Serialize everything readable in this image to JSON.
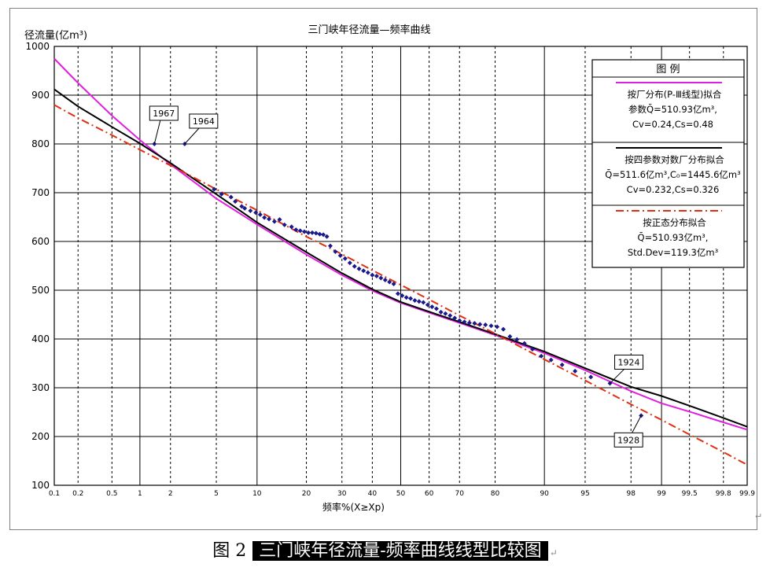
{
  "chart_data": {
    "type": "scatter",
    "title": "三门峡年径流量—频率曲线",
    "ylabel": "径流量(亿m³)",
    "xlabel": "频率%(X≥Xp)",
    "x_scale": "normal-probability",
    "xlim": [
      0.1,
      99.9
    ],
    "ylim": [
      100,
      1000
    ],
    "grid": true,
    "x_ticks": [
      0.1,
      0.2,
      0.5,
      1,
      2,
      5,
      10,
      20,
      30,
      40,
      50,
      60,
      70,
      80,
      90,
      95,
      98,
      99,
      99.5,
      99.8,
      99.9
    ],
    "x_tick_labels": [
      "0.1",
      "0.2",
      "0.5",
      "1",
      "2",
      "5",
      "10",
      "20",
      "30",
      "40",
      "50",
      "60",
      "70",
      "80",
      "90",
      "95",
      "98",
      "99",
      "99.5",
      "99.8",
      "99.9"
    ],
    "y_ticks": [
      100,
      200,
      300,
      400,
      500,
      600,
      700,
      800,
      900,
      1000
    ],
    "y_tick_labels": [
      "100",
      "200",
      "300",
      "400",
      "500",
      "600",
      "700",
      "800",
      "900",
      "1000"
    ],
    "legend_placement": "top-right",
    "legend": {
      "header": "图    例",
      "entries": [
        {
          "lines": [
            "按厂分布(P-Ⅲ线型)拟合",
            "参数Q̄=510.93亿m³,",
            "Cv=0.24,Cs=0.48"
          ],
          "color": "#e020e0",
          "dash": "solid"
        },
        {
          "lines": [
            "按四参数对数厂分布拟合",
            "Q̄=511.6亿m³,C₀=1445.6亿m³",
            "Cv=0.232,Cs=0.326"
          ],
          "color": "#000000",
          "dash": "solid"
        },
        {
          "lines": [
            "按正态分布拟合",
            "Q̄=510.93亿m³,",
            "Std.Dev=119.3亿m³"
          ],
          "color": "#e03010",
          "dash": "dashdot"
        }
      ]
    },
    "series": [
      {
        "name": "按厂分布(P-Ⅲ线型)拟合",
        "kind": "line",
        "color": "#e020e0",
        "dash": "solid",
        "x": [
          0.1,
          0.2,
          0.5,
          1,
          2,
          5,
          10,
          20,
          30,
          40,
          50,
          60,
          70,
          80,
          90,
          95,
          98,
          99,
          99.5,
          99.8,
          99.9
        ],
        "y": [
          975,
          925,
          858,
          808,
          758,
          688,
          635,
          573,
          531,
          499,
          474,
          454,
          433,
          408,
          371,
          336,
          293,
          268,
          251,
          229,
          214
        ]
      },
      {
        "name": "按四参数对数厂分布拟合",
        "kind": "line",
        "color": "#000000",
        "dash": "solid",
        "x": [
          0.1,
          0.2,
          0.5,
          1,
          2,
          5,
          10,
          20,
          30,
          40,
          50,
          60,
          70,
          80,
          90,
          95,
          98,
          99,
          99.5,
          99.8,
          99.9
        ],
        "y": [
          912,
          877,
          835,
          801,
          761,
          697,
          639,
          578,
          535,
          502,
          476,
          456,
          435,
          410,
          374,
          340,
          302,
          283,
          263,
          238,
          220
        ]
      },
      {
        "name": "按正态分布拟合",
        "kind": "line",
        "color": "#e03010",
        "dash": "dashdot",
        "x": [
          0.1,
          0.2,
          0.5,
          1,
          2,
          5,
          10,
          20,
          30,
          40,
          50,
          60,
          70,
          80,
          90,
          95,
          98,
          99,
          99.5,
          99.8,
          99.9
        ],
        "y": [
          880,
          853,
          818,
          788,
          756,
          707,
          664,
          610,
          574,
          541,
          511,
          481,
          448,
          411,
          358,
          315,
          266,
          234,
          204,
          168,
          142
        ]
      },
      {
        "name": "",
        "kind": "points",
        "color": "#1a1a8c",
        "x": [
          1.4,
          2.7,
          4.8,
          5.5,
          6.5,
          7.0,
          7.8,
          8.2,
          9.0,
          9.8,
          10.5,
          11.2,
          12.0,
          13.0,
          14.0,
          15.0,
          16.5,
          17.5,
          18.5,
          19.5,
          20.5,
          21.5,
          22.5,
          23.5,
          24.5,
          25.5,
          26.5,
          28,
          29.5,
          31,
          32.5,
          34,
          35.5,
          37,
          38.5,
          40,
          41.5,
          43,
          44.5,
          46,
          47.5,
          49,
          50.5,
          52,
          53.5,
          55,
          56.5,
          58,
          59.5,
          61,
          62.5,
          64,
          65.5,
          67,
          68.5,
          70,
          71.5,
          73,
          74.5,
          76,
          77.5,
          79,
          80.5,
          82,
          83.5,
          85,
          86.5,
          88,
          89.5,
          91,
          92.5,
          94,
          95.5,
          96.9,
          98.4
        ],
        "y": [
          800,
          800,
          707,
          697,
          691,
          682,
          672,
          668,
          663,
          659,
          655,
          649,
          646,
          641,
          645,
          634,
          630,
          624,
          622,
          620,
          618,
          618,
          617,
          615,
          614,
          610,
          591,
          579,
          571,
          565,
          556,
          549,
          544,
          540,
          536,
          531,
          529,
          525,
          521,
          517,
          513,
          493,
          489,
          485,
          483,
          479,
          477,
          475,
          470,
          466,
          462,
          455,
          452,
          448,
          443,
          438,
          435,
          433,
          432,
          430,
          429,
          427,
          425,
          420,
          405,
          399,
          391,
          379,
          365,
          357,
          347,
          334,
          322,
          309,
          243
        ]
      }
    ],
    "annotations": [
      {
        "label": "1967",
        "x": 1.4,
        "y": 800
      },
      {
        "label": "1964",
        "x": 2.7,
        "y": 800
      },
      {
        "label": "1924",
        "x": 96.9,
        "y": 309
      },
      {
        "label": "1928",
        "x": 98.4,
        "y": 243
      }
    ]
  },
  "caption": {
    "number": "图 2",
    "text": "三门峡年径流量-频率曲线线型比较图"
  }
}
